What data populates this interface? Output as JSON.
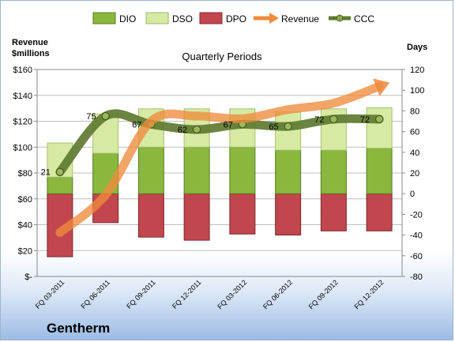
{
  "company": "Gentherm",
  "chart_data": {
    "type": "bar",
    "title": "Quarterly Periods",
    "left_axis_label_line1": "Revenue",
    "left_axis_label_line2": "$millions",
    "right_axis_label": "Days",
    "categories": [
      "FQ 03-2011",
      "FQ 06-2011",
      "FQ 09-2011",
      "FQ 12-2011",
      "FQ 03-2012",
      "FQ 06-2012",
      "FQ 09-2012",
      "FQ 12-2012"
    ],
    "left_ylim": [
      0,
      160
    ],
    "left_ticks": [
      "$-",
      "$20",
      "$40",
      "$60",
      "$80",
      "$100",
      "$120",
      "$140",
      "$160"
    ],
    "right_ylim": [
      -80,
      120
    ],
    "right_ticks": [
      "-80",
      "-60",
      "-40",
      "-20",
      "0",
      "20",
      "40",
      "60",
      "80",
      "100",
      "120"
    ],
    "legend_position": "top",
    "series": [
      {
        "name": "DIO",
        "type": "bar",
        "color": "#8ab83e",
        "values": [
          16,
          39,
          45,
          45,
          45,
          42,
          42,
          44
        ]
      },
      {
        "name": "DSO",
        "type": "bar",
        "color": "#d6eaa4",
        "values": [
          33,
          38,
          37,
          37,
          37,
          37,
          40,
          39
        ]
      },
      {
        "name": "DPO",
        "type": "bar",
        "color": "#c1464e",
        "values": [
          -61,
          -28,
          -42,
          -45,
          -39,
          -40,
          -36,
          -36
        ]
      },
      {
        "name": "Revenue",
        "type": "line",
        "axis": "left",
        "color": "#f08a3c",
        "values": [
          34,
          63,
          120,
          124,
          122,
          129,
          134,
          147
        ]
      },
      {
        "name": "CCC",
        "type": "line",
        "axis": "right",
        "color": "#5f7a32",
        "values": [
          21,
          75,
          67,
          62,
          67,
          65,
          72,
          72
        ],
        "labels": [
          "21",
          "75",
          "67",
          "62",
          "67",
          "65",
          "72",
          "72"
        ]
      }
    ]
  }
}
